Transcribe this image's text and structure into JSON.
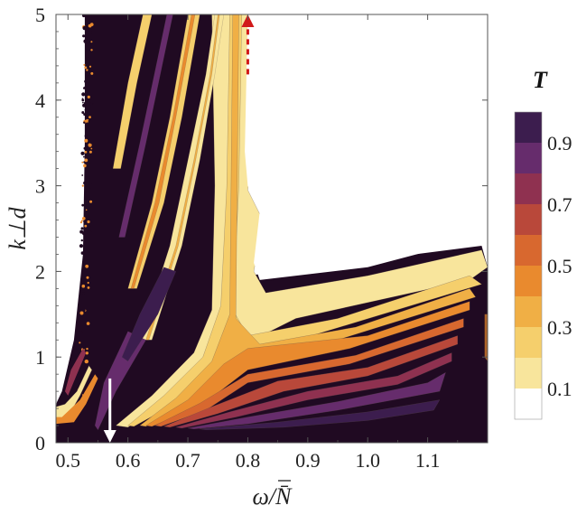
{
  "chart_data": {
    "type": "heatmap",
    "title": "",
    "xlabel": "ω/N̄",
    "ylabel": "k⊥d",
    "xlim": [
      0.48,
      1.2
    ],
    "ylim": [
      0,
      5
    ],
    "x_ticks": [
      0.5,
      0.6,
      0.7,
      0.8,
      0.9,
      1.0,
      1.1
    ],
    "x_tick_labels": [
      "0.5",
      "0.6",
      "0.7",
      "0.8",
      "0.9",
      "1.0",
      "1.1"
    ],
    "y_ticks": [
      0,
      1,
      2,
      3,
      4,
      5
    ],
    "y_tick_labels": [
      "0",
      "1",
      "2",
      "3",
      "4",
      "5"
    ],
    "colorbar": {
      "title": "T",
      "levels": [
        0,
        0.1,
        0.2,
        0.3,
        0.4,
        0.5,
        0.6,
        0.7,
        0.8,
        0.9,
        1.0
      ],
      "labels": [
        "0.1",
        "0.3",
        "0.5",
        "0.7",
        "0.9"
      ],
      "label_values": [
        0.1,
        0.3,
        0.5,
        0.7,
        0.9
      ],
      "colors": [
        "#ffffff",
        "#f8e59c",
        "#f5cf6c",
        "#f0af45",
        "#e98a2e",
        "#d8682f",
        "#b9483a",
        "#8f3150",
        "#662c6c",
        "#3c1d4e",
        "#200a22"
      ]
    },
    "annotations": [
      {
        "type": "arrow",
        "color": "#ffffff",
        "style": "solid",
        "direction": "down",
        "x": 0.57,
        "y_from": 0.75,
        "y_to": 0
      },
      {
        "type": "arrow",
        "color": "#d11a1a",
        "style": "dashed",
        "direction": "up",
        "x": 0.8,
        "y_from": 4.3,
        "y_to": 5
      }
    ],
    "grid": false,
    "legend": "right"
  }
}
